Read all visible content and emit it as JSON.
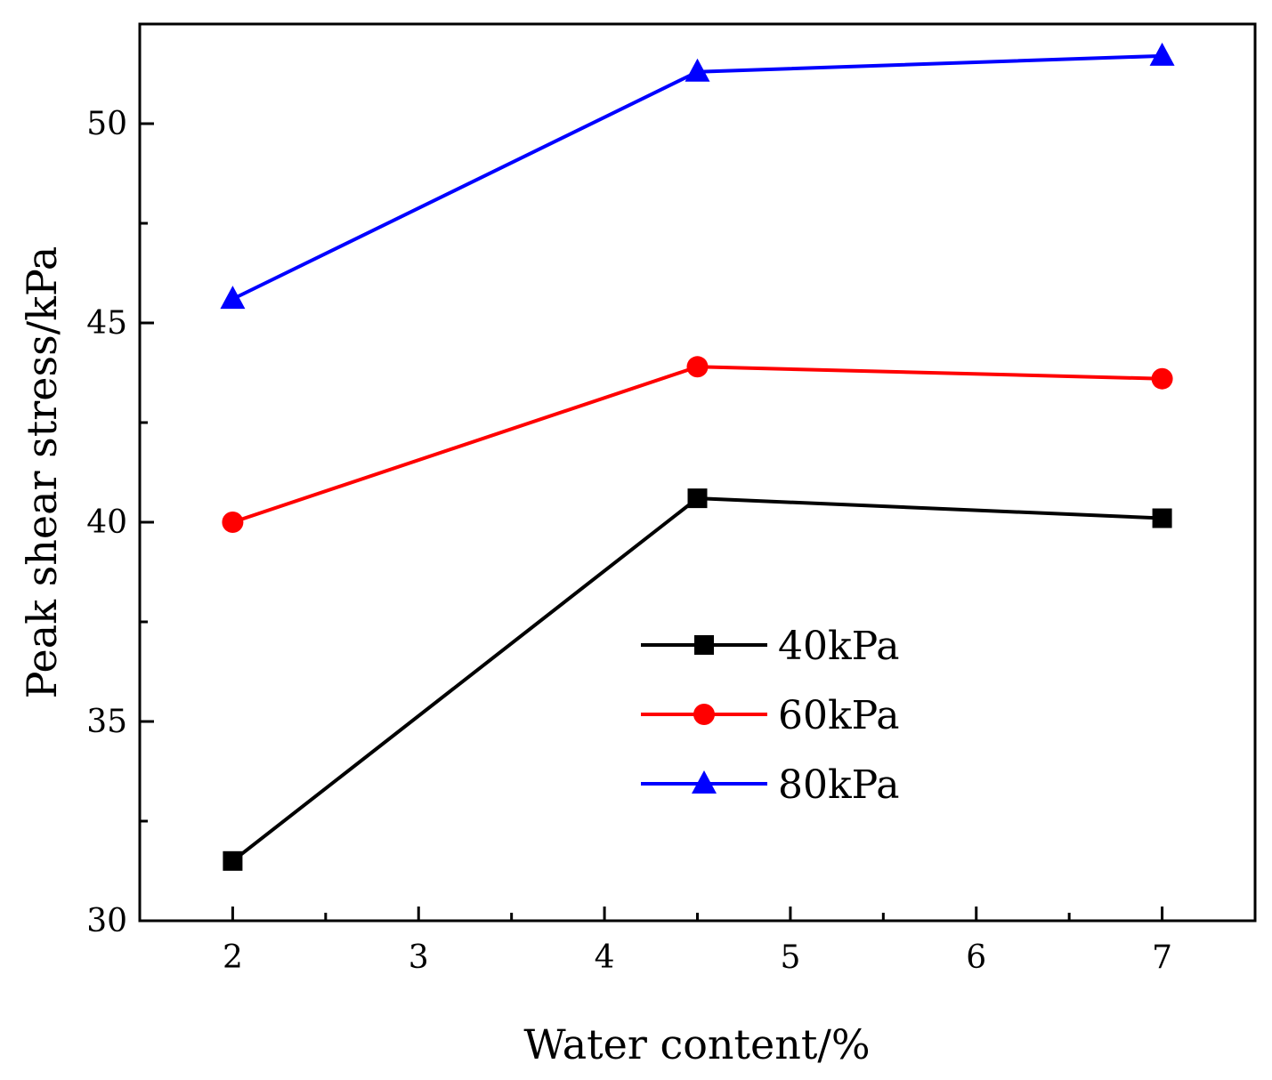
{
  "chart_data": {
    "type": "line",
    "title": "",
    "xlabel": "Water content/%",
    "ylabel": "Peak shear stress/kPa",
    "x": [
      2,
      4.5,
      7
    ],
    "xlim": [
      1.5,
      7.5
    ],
    "ylim": [
      30,
      52.5
    ],
    "xticks": [
      2,
      3,
      4,
      5,
      6,
      7
    ],
    "xtick_labels": [
      "2",
      "3",
      "4",
      "5",
      "6",
      "7"
    ],
    "xminor": [
      2.5,
      3.5,
      4.5,
      5.5,
      6.5
    ],
    "yticks": [
      30,
      35,
      40,
      45,
      50
    ],
    "ytick_labels": [
      "30",
      "35",
      "40",
      "45",
      "50"
    ],
    "yminor": [
      32.5,
      37.5,
      42.5,
      47.5
    ],
    "grid": false,
    "legend_position": "center-right",
    "series": [
      {
        "name": "40kPa",
        "values": [
          31.5,
          40.6,
          40.1
        ],
        "color": "#000000",
        "marker": "square"
      },
      {
        "name": "60kPa",
        "values": [
          40.0,
          43.9,
          43.6
        ],
        "color": "#ff0000",
        "marker": "circle"
      },
      {
        "name": "80kPa",
        "values": [
          45.6,
          51.3,
          51.7
        ],
        "color": "#0000ff",
        "marker": "triangle"
      }
    ]
  }
}
